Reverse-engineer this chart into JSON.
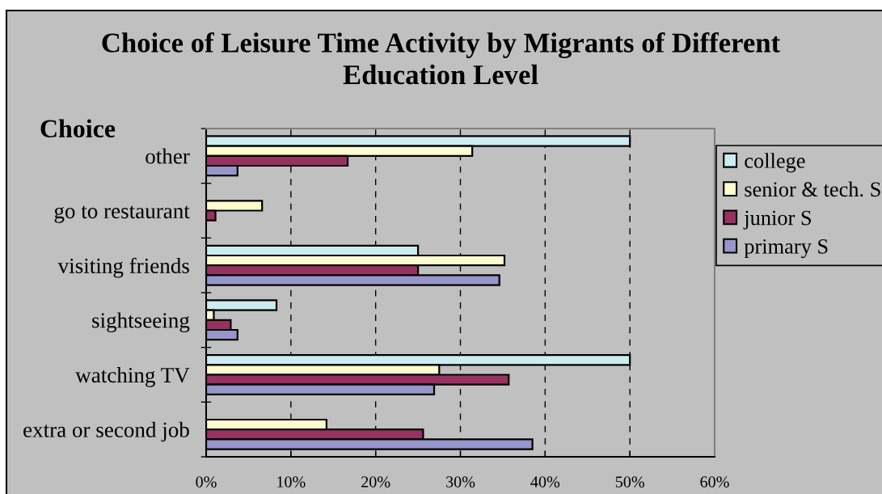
{
  "chart_data": {
    "type": "bar",
    "orientation": "horizontal",
    "title": "Choice of Leisure Time Activity by Migrants of Different Education Level",
    "ylabel": "Choice",
    "categories": [
      "other",
      "go to restaurant",
      "visiting friends",
      "sightseeing",
      "watching TV",
      "extra or second job"
    ],
    "series": [
      {
        "name": "college",
        "color": "#cdecf0",
        "values": [
          50,
          null,
          25,
          8.3,
          50,
          null
        ]
      },
      {
        "name": "senior & tech. S",
        "color": "#fdfbd0",
        "values": [
          31.4,
          6.6,
          35.2,
          0.9,
          27.5,
          14.2
        ]
      },
      {
        "name": "junior S",
        "color": "#963260",
        "values": [
          16.7,
          1.1,
          25,
          2.9,
          35.7,
          25.6
        ]
      },
      {
        "name": "primary S",
        "color": "#9696ca",
        "values": [
          3.7,
          null,
          34.6,
          3.7,
          26.9,
          38.5
        ]
      }
    ],
    "xlim": [
      0,
      60
    ],
    "xticks": [
      {
        "value": 0,
        "label": "0%"
      },
      {
        "value": 10,
        "label": "10%"
      },
      {
        "value": 20,
        "label": "20%"
      },
      {
        "value": 30,
        "label": "30%"
      },
      {
        "value": 40,
        "label": "40%"
      },
      {
        "value": 50,
        "label": "50%"
      },
      {
        "value": 60,
        "label": "60%"
      }
    ],
    "grid": "x",
    "legend": "right"
  }
}
